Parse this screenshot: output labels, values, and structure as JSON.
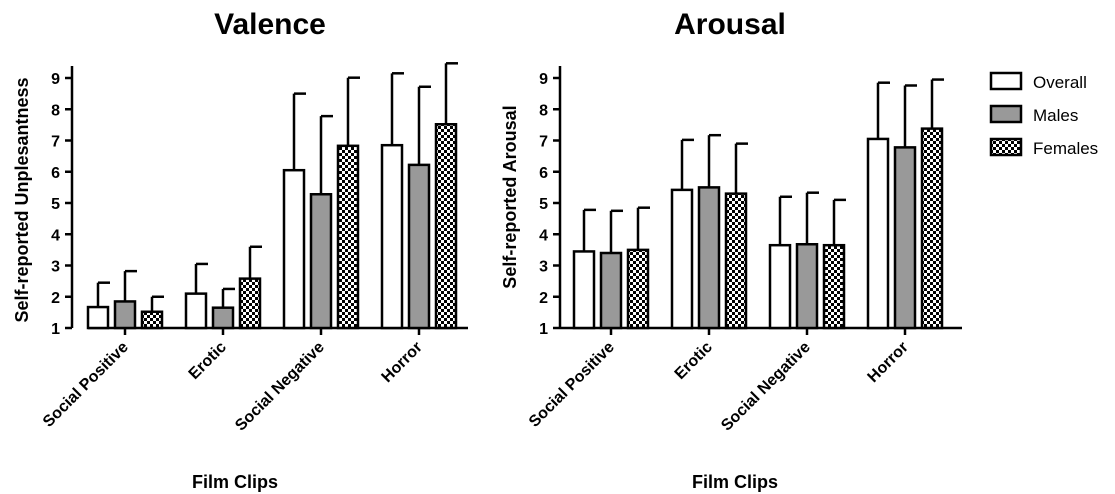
{
  "figure": {
    "legend": {
      "placement": "right",
      "items": [
        {
          "label": "Overall",
          "pattern": "white"
        },
        {
          "label": "Males",
          "pattern": "gray"
        },
        {
          "label": "Females",
          "pattern": "checker"
        }
      ]
    }
  },
  "colors": {
    "overall_fill": "#ffffff",
    "males_fill": "#999999",
    "females_fill": "checkerboard",
    "stroke": "#000000"
  },
  "chart_data": [
    {
      "type": "bar",
      "title": "Valence",
      "xlabel": "Film Clips",
      "ylabel": "Self-reported Unplesantness",
      "ylim": [
        1,
        9
      ],
      "yticks": [
        "1",
        "2",
        "3",
        "4",
        "5",
        "6",
        "7",
        "8",
        "9"
      ],
      "categories": [
        "Social Positive",
        "Erotic",
        "Social Negative",
        "Horror"
      ],
      "series": [
        {
          "name": "Overall",
          "values": [
            1.67,
            2.1,
            6.05,
            6.85
          ],
          "errors": [
            0.78,
            0.95,
            2.45,
            2.3
          ]
        },
        {
          "name": "Males",
          "values": [
            1.85,
            1.65,
            5.28,
            6.22
          ],
          "errors": [
            0.97,
            0.6,
            2.5,
            2.5
          ]
        },
        {
          "name": "Females",
          "values": [
            1.52,
            2.58,
            6.83,
            7.52
          ],
          "errors": [
            0.48,
            1.02,
            2.18,
            1.95
          ]
        }
      ]
    },
    {
      "type": "bar",
      "title": "Arousal",
      "xlabel": "Film Clips",
      "ylabel": "Self-reported Arousal",
      "ylim": [
        1,
        9
      ],
      "yticks": [
        "1",
        "2",
        "3",
        "4",
        "5",
        "6",
        "7",
        "8",
        "9"
      ],
      "categories": [
        "Social Positive",
        "Erotic",
        "Social Negative",
        "Horror"
      ],
      "series": [
        {
          "name": "Overall",
          "values": [
            3.45,
            5.42,
            3.65,
            7.05
          ],
          "errors": [
            1.33,
            1.6,
            1.55,
            1.8
          ]
        },
        {
          "name": "Males",
          "values": [
            3.4,
            5.5,
            3.68,
            6.78
          ],
          "errors": [
            1.35,
            1.67,
            1.65,
            1.98
          ]
        },
        {
          "name": "Females",
          "values": [
            3.5,
            5.3,
            3.65,
            7.38
          ],
          "errors": [
            1.35,
            1.6,
            1.45,
            1.57
          ]
        }
      ]
    }
  ]
}
